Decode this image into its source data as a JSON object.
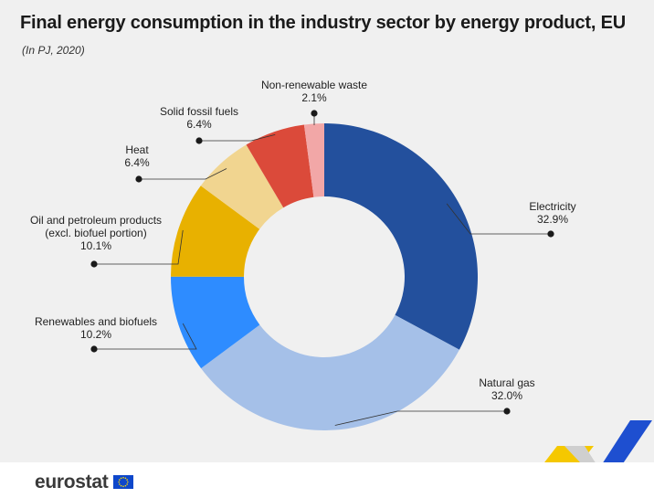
{
  "header": {
    "title": "Final energy consumption in the industry sector by energy product, EU",
    "subtitle": "(In PJ, 2020)"
  },
  "footer": {
    "logo_text": "eurostat"
  },
  "chart_data": {
    "type": "pie",
    "donut": true,
    "title": "Final energy consumption in the industry sector by energy product, EU",
    "subtitle": "(In PJ, 2020)",
    "unit": "%",
    "slices": [
      {
        "label": "Electricity",
        "value": 32.9,
        "value_label": "32.9%",
        "color": "#23509d"
      },
      {
        "label": "Natural gas",
        "value": 32.0,
        "value_label": "32.0%",
        "color": "#a5c0e8"
      },
      {
        "label": "Renewables and biofuels",
        "value": 10.2,
        "value_label": "10.2%",
        "color": "#2e8cff"
      },
      {
        "label": "Oil and petroleum products (excl. biofuel portion)",
        "label_lines": [
          "Oil and petroleum products",
          "(excl. biofuel portion)"
        ],
        "value": 10.1,
        "value_label": "10.1%",
        "color": "#e8b100"
      },
      {
        "label": "Heat",
        "value": 6.4,
        "value_label": "6.4%",
        "color": "#f1d590"
      },
      {
        "label": "Solid fossil fuels",
        "value": 6.4,
        "value_label": "6.4%",
        "color": "#db4a3a"
      },
      {
        "label": "Non-renewable waste",
        "value": 2.1,
        "value_label": "2.1%",
        "color": "#f2a7a7"
      }
    ]
  }
}
